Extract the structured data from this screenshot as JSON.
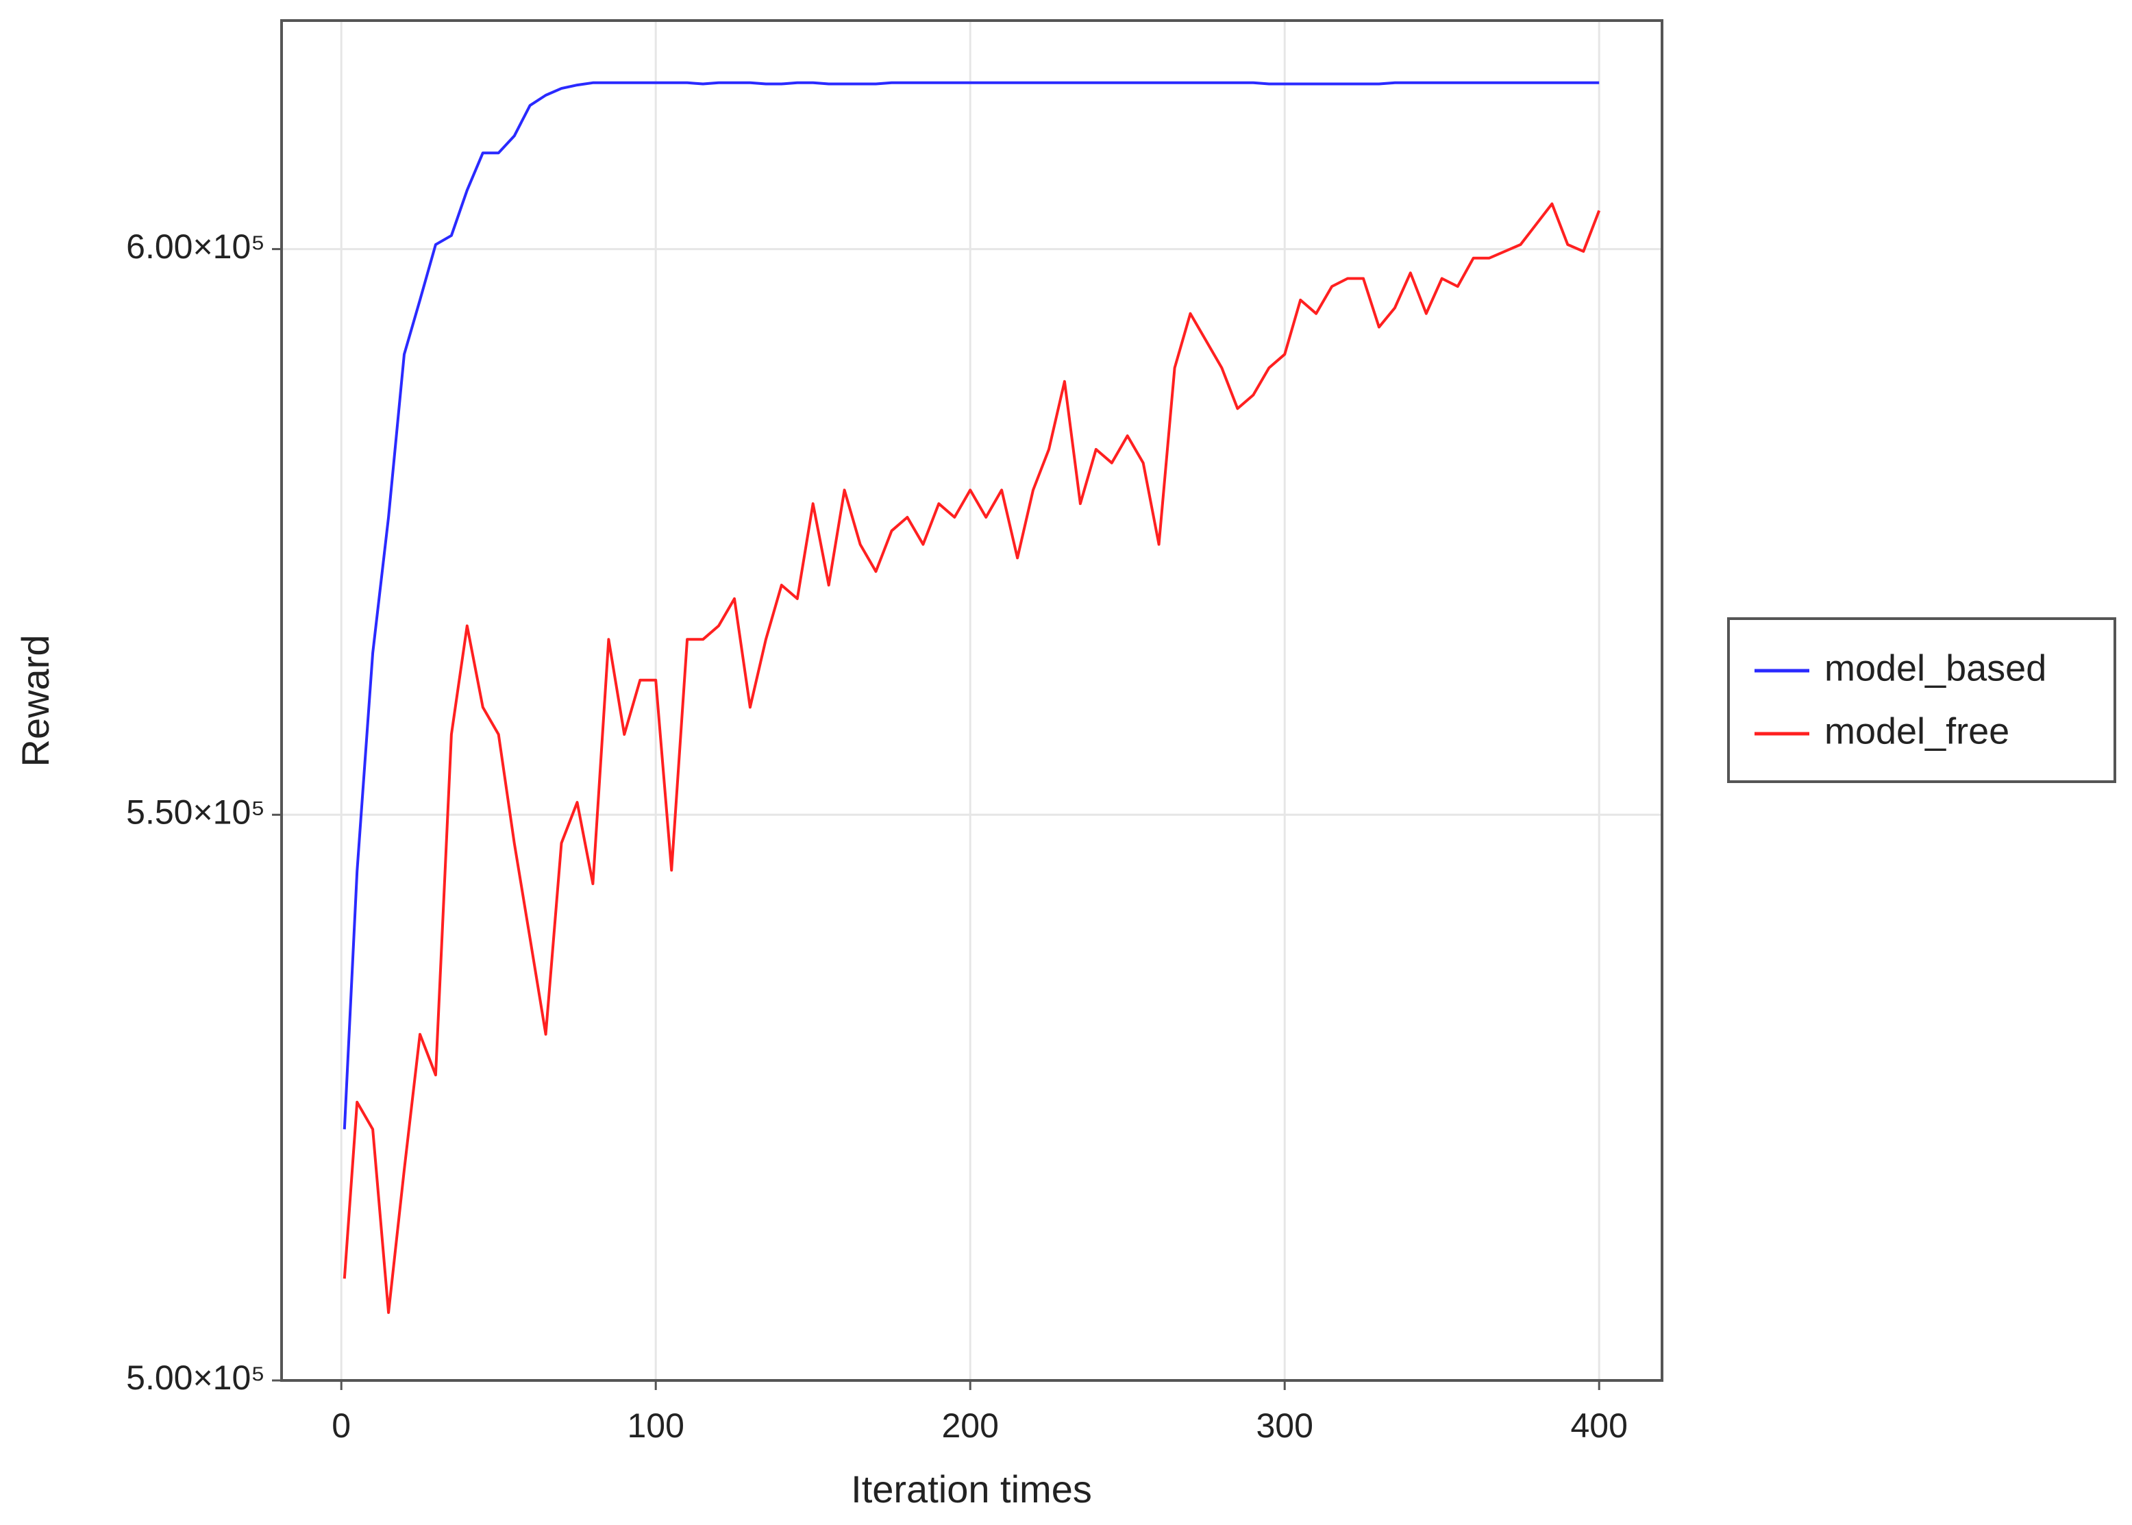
{
  "chart_data": {
    "type": "line",
    "xlabel": "Iteration times",
    "ylabel": "Reward",
    "x": [
      1,
      5,
      10,
      15,
      20,
      25,
      30,
      35,
      40,
      45,
      50,
      55,
      60,
      65,
      70,
      75,
      80,
      85,
      90,
      95,
      100,
      105,
      110,
      115,
      120,
      125,
      130,
      135,
      140,
      145,
      150,
      155,
      160,
      165,
      170,
      175,
      180,
      185,
      190,
      195,
      200,
      205,
      210,
      215,
      220,
      225,
      230,
      235,
      240,
      245,
      250,
      255,
      260,
      265,
      270,
      275,
      280,
      285,
      290,
      295,
      300,
      305,
      310,
      315,
      320,
      325,
      330,
      335,
      340,
      345,
      350,
      355,
      360,
      365,
      370,
      375,
      380,
      385,
      390,
      395,
      400
    ],
    "series": [
      {
        "name": "model_based",
        "color": "#2a2aff",
        "values": [
          522200,
          545000,
          564300,
          576300,
          590700,
          595500,
          600400,
          601200,
          605200,
          608500,
          608500,
          610000,
          612700,
          613600,
          614200,
          614500,
          614700,
          614700,
          614700,
          614700,
          614700,
          614700,
          614700,
          614600,
          614700,
          614700,
          614700,
          614600,
          614600,
          614700,
          614700,
          614600,
          614600,
          614600,
          614600,
          614700,
          614700,
          614700,
          614700,
          614700,
          614700,
          614700,
          614700,
          614700,
          614700,
          614700,
          614700,
          614700,
          614700,
          614700,
          614700,
          614700,
          614700,
          614700,
          614700,
          614700,
          614700,
          614700,
          614700,
          614600,
          614600,
          614600,
          614600,
          614600,
          614600,
          614600,
          614600,
          614700,
          614700,
          614700,
          614700,
          614700,
          614700,
          614700,
          614700,
          614700,
          614700,
          614700,
          614700,
          614700,
          614700
        ]
      },
      {
        "name": "model_free",
        "color": "#ff2020",
        "values": [
          509000,
          524600,
          522200,
          506000,
          518600,
          530600,
          527000,
          557100,
          566700,
          559500,
          557100,
          547500,
          539100,
          530600,
          547500,
          551100,
          543900,
          565500,
          557100,
          561900,
          561900,
          545100,
          565500,
          565500,
          566700,
          569100,
          559500,
          565500,
          570300,
          569100,
          577500,
          570300,
          578700,
          573900,
          571500,
          575100,
          576300,
          573900,
          577500,
          576300,
          578700,
          576300,
          578700,
          572700,
          578700,
          582300,
          588300,
          577500,
          582300,
          581100,
          583500,
          581100,
          573900,
          589500,
          594300,
          591900,
          589500,
          585900,
          587100,
          589500,
          590700,
          595500,
          594300,
          596700,
          597400,
          597400,
          593100,
          594800,
          597900,
          594300,
          597400,
          596700,
          599200,
          599200,
          599800,
          600400,
          602200,
          604000,
          600400,
          599800,
          603400
        ]
      }
    ],
    "xlim": [
      -19,
      420
    ],
    "ylim": [
      500000,
      620200
    ],
    "xticks": [
      0,
      100,
      200,
      300,
      400
    ],
    "yticks": [
      {
        "value": 500000,
        "label": "5.00×10⁵"
      },
      {
        "value": 550000,
        "label": "5.50×10⁵"
      },
      {
        "value": 600000,
        "label": "6.00×10⁵"
      }
    ],
    "grid": true,
    "legend": "outside right"
  }
}
